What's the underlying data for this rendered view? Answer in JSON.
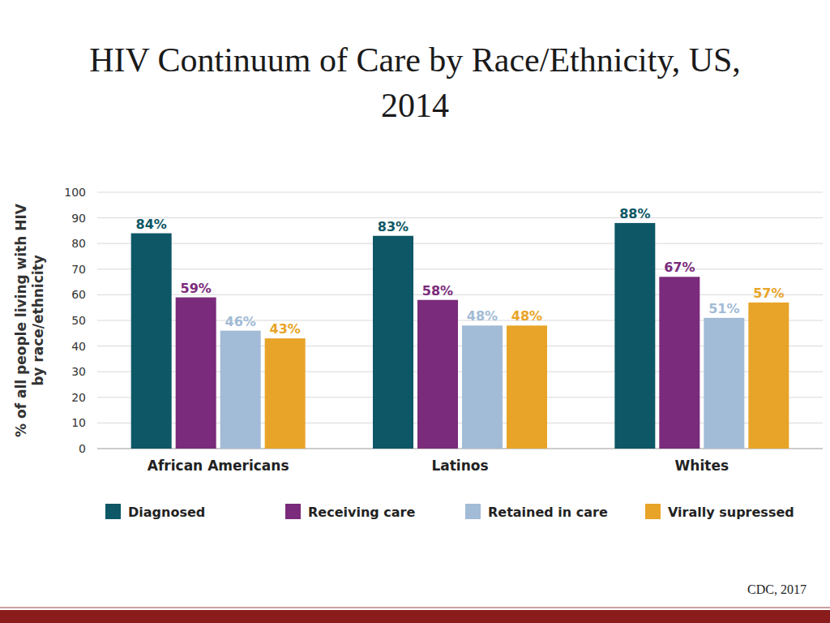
{
  "chart_data": {
    "type": "bar",
    "title": "HIV Continuum of Care by Race/Ethnicity, US, 2014",
    "y_label": "% of all people living with HIV by race/ethnicity",
    "source": "CDC, 2017",
    "categories": [
      "African Americans",
      "Latinos",
      "Whites"
    ],
    "series": [
      {
        "name": "Diagnosed",
        "color": "#0d5766",
        "values": [
          84,
          83,
          88
        ],
        "value_labels": [
          "84%",
          "83%",
          "88%"
        ]
      },
      {
        "name": "Receiving care",
        "color": "#7a2b7b",
        "values": [
          59,
          58,
          67
        ],
        "value_labels": [
          "59%",
          "58%",
          "67%"
        ]
      },
      {
        "name": "Retained in care",
        "color": "#a2bbd6",
        "values": [
          46,
          48,
          51
        ],
        "value_labels": [
          "46%",
          "48%",
          "51%"
        ]
      },
      {
        "name": "Virally supressed",
        "color": "#e8a428",
        "values": [
          43,
          48,
          57
        ],
        "value_labels": [
          "43%",
          "48%",
          "57%"
        ]
      }
    ],
    "ylim": [
      0,
      100
    ],
    "yticks": [
      0,
      10,
      20,
      30,
      40,
      50,
      60,
      70,
      80,
      90,
      100
    ],
    "grid": true,
    "legend": "bottom",
    "data_labels": true
  }
}
